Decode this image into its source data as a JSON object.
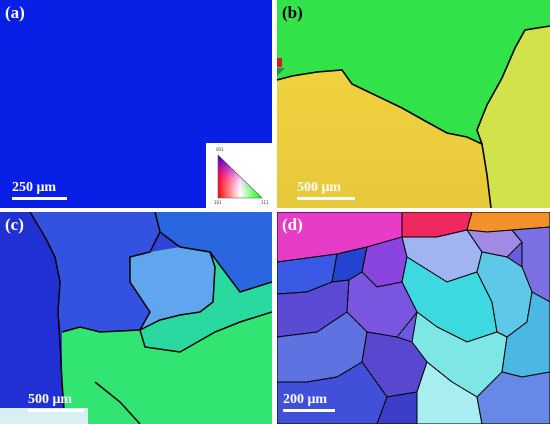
{
  "panels": [
    {
      "label": "(a)",
      "scale_text": "250 μm"
    },
    {
      "label": "(b)",
      "scale_text": "500 μm"
    },
    {
      "label": "(c)",
      "scale_text": "500 μm"
    },
    {
      "label": "(d)",
      "scale_text": "200 μm"
    }
  ],
  "ipf_legend": {
    "corner_001": "001",
    "corner_101": "101",
    "corner_111": "111"
  },
  "colors": {
    "orientation_001": "#ff0000",
    "orientation_101": "#00ff00",
    "orientation_111": "#0000ff",
    "panel_a_fill": "#0a1fe6"
  }
}
